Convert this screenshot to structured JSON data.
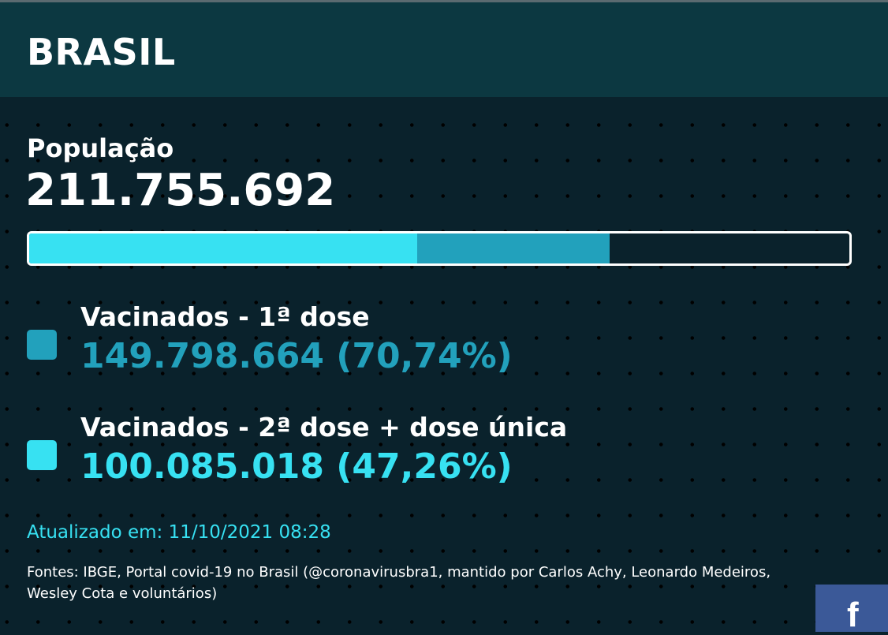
{
  "header": {
    "title": "BRASIL"
  },
  "population": {
    "label": "População",
    "value": "211.755.692"
  },
  "progress": {
    "first_dose_fraction": 0.7074,
    "full_dose_fraction": 0.4726
  },
  "legend": [
    {
      "label": "Vacinados - 1ª dose",
      "value": "149.798.664 (70,74%)",
      "color": "#22a1bc"
    },
    {
      "label": "Vacinados - 2ª dose + dose única",
      "value": "100.085.018 (47,26%)",
      "color": "#37e1f2"
    }
  ],
  "updated": "Atualizado em: 11/10/2021 08:28",
  "sources": "Fontes: IBGE, Portal covid-19 no Brasil (@coronavirusbra1, mantido por Carlos Achy, Leonardo Medeiros, Wesley Cota e voluntários)",
  "updated_color": "#37e1f2",
  "share": {
    "icon": "facebook-icon",
    "glyph": "f",
    "color": "#3b5998"
  }
}
